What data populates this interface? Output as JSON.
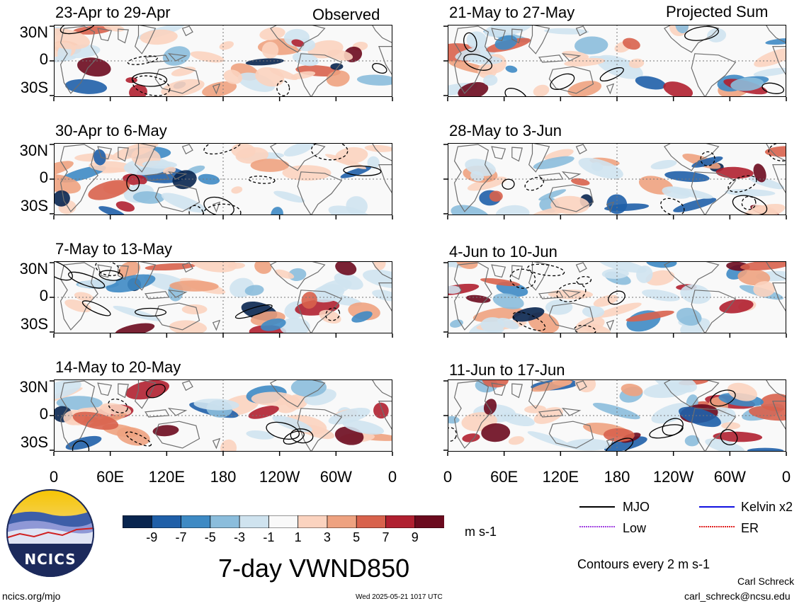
{
  "headers": {
    "observed": "Observed",
    "projected": "Projected Sum"
  },
  "left_panels": [
    {
      "title": "23-Apr to 29-Apr"
    },
    {
      "title": "30-Apr to 6-May"
    },
    {
      "title": "7-May to 13-May"
    },
    {
      "title": "14-May to 20-May"
    }
  ],
  "right_panels": [
    {
      "title": "21-May to 27-May"
    },
    {
      "title": "28-May to 3-Jun"
    },
    {
      "title": "4-Jun to 10-Jun"
    },
    {
      "title": "11-Jun to 17-Jun"
    }
  ],
  "lat_labels": [
    "30N",
    "0",
    "30S"
  ],
  "lon_labels": [
    "0",
    "60E",
    "120E",
    "180",
    "120W",
    "60W",
    "0"
  ],
  "colorbar": {
    "colors": [
      "#08254f",
      "#1f5fa8",
      "#3e8ac4",
      "#8bbddc",
      "#cfe3ef",
      "#f9f9f9",
      "#fbd3bf",
      "#eea280",
      "#d8624c",
      "#b02030",
      "#6b0a1e"
    ],
    "labels": [
      "-9",
      "-7",
      "-5",
      "-3",
      "-1",
      "1",
      "3",
      "5",
      "7",
      "9"
    ],
    "units": "m s-1"
  },
  "legend": {
    "items": [
      {
        "label": "MJO",
        "color": "#000000"
      },
      {
        "label": "Kelvin x2",
        "color": "#1010e0"
      },
      {
        "label": "Low",
        "color": "#a040e0"
      },
      {
        "label": "ER",
        "color": "#e02020"
      }
    ],
    "contour_note": "Contours every 2 m s-1"
  },
  "main_title": "7-day VWND850",
  "logo_text": "NCICS",
  "footer": {
    "site": "ncics.org/mjo",
    "timestamp": "Wed 2025-05-21 1017 UTC",
    "author": "Carl Schreck",
    "email": "carl_schreck@ncsu.edu"
  }
}
